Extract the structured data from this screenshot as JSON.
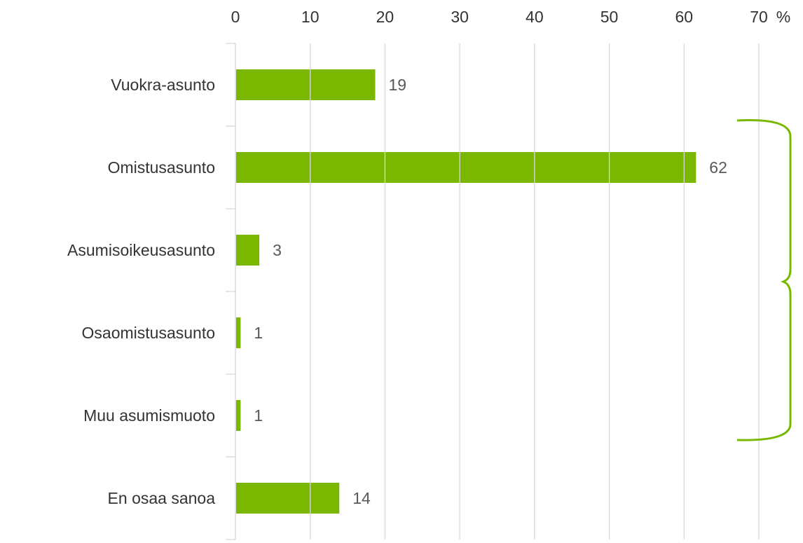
{
  "chart_data": {
    "type": "hbar",
    "categories": [
      "Vuokra-asunto",
      "Omistusasunto",
      "Asumisoikeusasunto",
      "Osaomistusasunto",
      "Muu asumismuoto",
      "En osaa sanoa"
    ],
    "values": [
      18.6,
      61.5,
      3.1,
      0.6,
      0.6,
      13.8
    ],
    "value_labels": [
      "19",
      "62",
      "3",
      "1",
      "1",
      "14"
    ],
    "color": "#7ab800",
    "xlim": [
      0,
      70
    ],
    "xticks": [
      0,
      10,
      20,
      30,
      40,
      50,
      60,
      70
    ],
    "x_unit": "%",
    "grid": true
  }
}
